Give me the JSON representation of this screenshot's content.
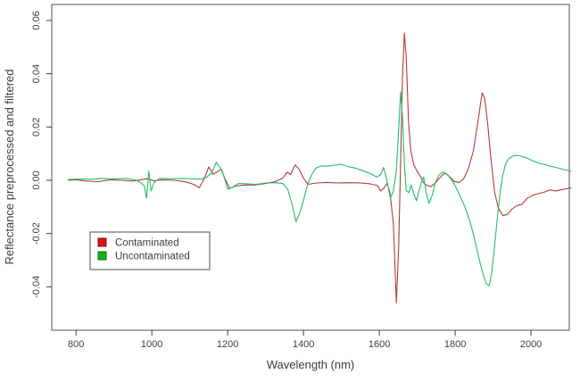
{
  "figure": {
    "background": "#ffffff",
    "axis_color": "#6f6f6f",
    "tick_color": "#3d3d3d",
    "text_color": "#3d3d3d"
  },
  "chart_data": {
    "type": "line",
    "title": "",
    "xlabel": "Wavelength (nm)",
    "ylabel": "Reflectance preprocessed and filtered",
    "xlim": [
      736,
      2101
    ],
    "ylim": [
      -0.0563,
      0.066
    ],
    "x_ticks": [
      800,
      1000,
      1200,
      1400,
      1600,
      1800,
      2000
    ],
    "y_ticks": [
      0.06,
      0.04,
      0.02,
      0.0,
      -0.02,
      -0.04
    ],
    "grid": false,
    "legend_position": "lower-left",
    "series": [
      {
        "name": "Contaminated",
        "color": "#b03a3a",
        "legend_fill": "#dd1111",
        "legend_border": "#7c1010",
        "points": [
          [
            780,
            0.0
          ],
          [
            800,
            0.0002
          ],
          [
            830,
            -0.0003
          ],
          [
            860,
            -0.0005
          ],
          [
            890,
            0.0002
          ],
          [
            920,
            0.0
          ],
          [
            950,
            -0.0003
          ],
          [
            975,
            0.0003
          ],
          [
            990,
            0.0006
          ],
          [
            1005,
            -0.0002
          ],
          [
            1030,
            0.0002
          ],
          [
            1060,
            0.0
          ],
          [
            1090,
            -0.0006
          ],
          [
            1110,
            -0.0015
          ],
          [
            1125,
            -0.0028
          ],
          [
            1138,
            0.0005
          ],
          [
            1150,
            0.005
          ],
          [
            1162,
            0.0022
          ],
          [
            1172,
            0.0032
          ],
          [
            1183,
            0.0042
          ],
          [
            1193,
            0.0005
          ],
          [
            1205,
            -0.003
          ],
          [
            1220,
            -0.0022
          ],
          [
            1245,
            -0.0018
          ],
          [
            1270,
            -0.0018
          ],
          [
            1300,
            -0.0012
          ],
          [
            1325,
            -0.0005
          ],
          [
            1345,
            0.0008
          ],
          [
            1357,
            0.003
          ],
          [
            1366,
            0.0022
          ],
          [
            1378,
            0.0058
          ],
          [
            1388,
            0.0042
          ],
          [
            1400,
            0.0008
          ],
          [
            1412,
            -0.0015
          ],
          [
            1435,
            -0.001
          ],
          [
            1460,
            -0.0008
          ],
          [
            1490,
            -0.001
          ],
          [
            1520,
            -0.0009
          ],
          [
            1550,
            -0.001
          ],
          [
            1575,
            -0.0013
          ],
          [
            1595,
            -0.002
          ],
          [
            1603,
            -0.004
          ],
          [
            1612,
            -0.003
          ],
          [
            1620,
            -0.0012
          ],
          [
            1628,
            -0.0045
          ],
          [
            1637,
            -0.016
          ],
          [
            1645,
            -0.046
          ],
          [
            1651,
            -0.025
          ],
          [
            1656,
            0.006
          ],
          [
            1661,
            0.038
          ],
          [
            1666,
            0.0553
          ],
          [
            1671,
            0.046
          ],
          [
            1677,
            0.022
          ],
          [
            1683,
            0.011
          ],
          [
            1691,
            0.0058
          ],
          [
            1700,
            0.0033
          ],
          [
            1707,
            0.0018
          ],
          [
            1716,
            -0.0008
          ],
          [
            1726,
            -0.002
          ],
          [
            1736,
            -0.0024
          ],
          [
            1746,
            -0.0012
          ],
          [
            1757,
            0.0005
          ],
          [
            1768,
            0.0022
          ],
          [
            1776,
            0.0026
          ],
          [
            1786,
            0.0012
          ],
          [
            1797,
            -0.0004
          ],
          [
            1810,
            -0.0008
          ],
          [
            1822,
            0.0005
          ],
          [
            1834,
            0.004
          ],
          [
            1848,
            0.011
          ],
          [
            1860,
            0.022
          ],
          [
            1871,
            0.0328
          ],
          [
            1878,
            0.0308
          ],
          [
            1886,
            0.021
          ],
          [
            1895,
            0.007
          ],
          [
            1904,
            -0.0045
          ],
          [
            1914,
            -0.0105
          ],
          [
            1926,
            -0.0133
          ],
          [
            1938,
            -0.0128
          ],
          [
            1950,
            -0.0108
          ],
          [
            1962,
            -0.0096
          ],
          [
            1976,
            -0.009
          ],
          [
            1990,
            -0.0068
          ],
          [
            2005,
            -0.0056
          ],
          [
            2020,
            -0.005
          ],
          [
            2036,
            -0.0044
          ],
          [
            2050,
            -0.0036
          ],
          [
            2064,
            -0.004
          ],
          [
            2080,
            -0.0036
          ],
          [
            2094,
            -0.0032
          ],
          [
            2105,
            -0.0028
          ]
        ]
      },
      {
        "name": "Uncontaminated",
        "color": "#25bd66",
        "legend_fill": "#12b212",
        "legend_border": "#0a6e0a",
        "points": [
          [
            780,
            0.0003
          ],
          [
            810,
            0.0005
          ],
          [
            840,
            0.0004
          ],
          [
            870,
            0.0007
          ],
          [
            900,
            0.0005
          ],
          [
            930,
            0.0007
          ],
          [
            955,
            0.0002
          ],
          [
            970,
            -0.0008
          ],
          [
            980,
            -0.002
          ],
          [
            986,
            -0.0067
          ],
          [
            992,
            0.0034
          ],
          [
            998,
            -0.004
          ],
          [
            1006,
            -0.0008
          ],
          [
            1020,
            0.0007
          ],
          [
            1050,
            0.0006
          ],
          [
            1080,
            0.0007
          ],
          [
            1110,
            0.0005
          ],
          [
            1130,
            0.0004
          ],
          [
            1145,
            0.0012
          ],
          [
            1158,
            0.0028
          ],
          [
            1170,
            0.0067
          ],
          [
            1180,
            0.0048
          ],
          [
            1190,
            0.0015
          ],
          [
            1200,
            -0.0034
          ],
          [
            1213,
            -0.0026
          ],
          [
            1228,
            -0.0012
          ],
          [
            1250,
            -0.0013
          ],
          [
            1275,
            -0.0015
          ],
          [
            1300,
            -0.001
          ],
          [
            1325,
            -0.0009
          ],
          [
            1345,
            -0.0012
          ],
          [
            1358,
            -0.0032
          ],
          [
            1370,
            -0.009
          ],
          [
            1380,
            -0.0155
          ],
          [
            1390,
            -0.0125
          ],
          [
            1400,
            -0.0075
          ],
          [
            1410,
            -0.002
          ],
          [
            1421,
            0.002
          ],
          [
            1433,
            0.0046
          ],
          [
            1448,
            0.0054
          ],
          [
            1465,
            0.0053
          ],
          [
            1482,
            0.0057
          ],
          [
            1500,
            0.006
          ],
          [
            1516,
            0.0052
          ],
          [
            1535,
            0.0046
          ],
          [
            1556,
            0.0036
          ],
          [
            1578,
            0.0024
          ],
          [
            1593,
            0.0012
          ],
          [
            1603,
            0.002
          ],
          [
            1611,
            0.0048
          ],
          [
            1619,
            0.0005
          ],
          [
            1629,
            -0.0067
          ],
          [
            1637,
            -0.0042
          ],
          [
            1645,
            0.0036
          ],
          [
            1651,
            0.019
          ],
          [
            1656,
            0.0332
          ],
          [
            1661,
            0.024
          ],
          [
            1666,
            0.006
          ],
          [
            1671,
            -0.004
          ],
          [
            1678,
            -0.0046
          ],
          [
            1684,
            -0.0018
          ],
          [
            1691,
            -0.0052
          ],
          [
            1698,
            -0.0077
          ],
          [
            1704,
            -0.0042
          ],
          [
            1711,
            -0.0008
          ],
          [
            1717,
            0.0012
          ],
          [
            1723,
            -0.0042
          ],
          [
            1731,
            -0.0087
          ],
          [
            1739,
            -0.0058
          ],
          [
            1747,
            -0.0012
          ],
          [
            1756,
            0.0018
          ],
          [
            1766,
            0.003
          ],
          [
            1774,
            0.0027
          ],
          [
            1784,
            0.0014
          ],
          [
            1794,
            -0.0006
          ],
          [
            1804,
            -0.0032
          ],
          [
            1815,
            -0.0065
          ],
          [
            1827,
            -0.0105
          ],
          [
            1839,
            -0.0155
          ],
          [
            1851,
            -0.022
          ],
          [
            1863,
            -0.0295
          ],
          [
            1874,
            -0.0355
          ],
          [
            1883,
            -0.039
          ],
          [
            1890,
            -0.0396
          ],
          [
            1897,
            -0.034
          ],
          [
            1904,
            -0.0245
          ],
          [
            1911,
            -0.0145
          ],
          [
            1918,
            -0.0055
          ],
          [
            1925,
            0.0015
          ],
          [
            1933,
            0.0062
          ],
          [
            1942,
            0.0082
          ],
          [
            1952,
            0.0091
          ],
          [
            1963,
            0.0094
          ],
          [
            1976,
            0.0089
          ],
          [
            1990,
            0.0083
          ],
          [
            2005,
            0.0073
          ],
          [
            2020,
            0.0064
          ],
          [
            2036,
            0.0059
          ],
          [
            2052,
            0.0053
          ],
          [
            2068,
            0.0047
          ],
          [
            2084,
            0.0041
          ],
          [
            2096,
            0.0037
          ],
          [
            2105,
            0.0034
          ]
        ]
      }
    ]
  }
}
